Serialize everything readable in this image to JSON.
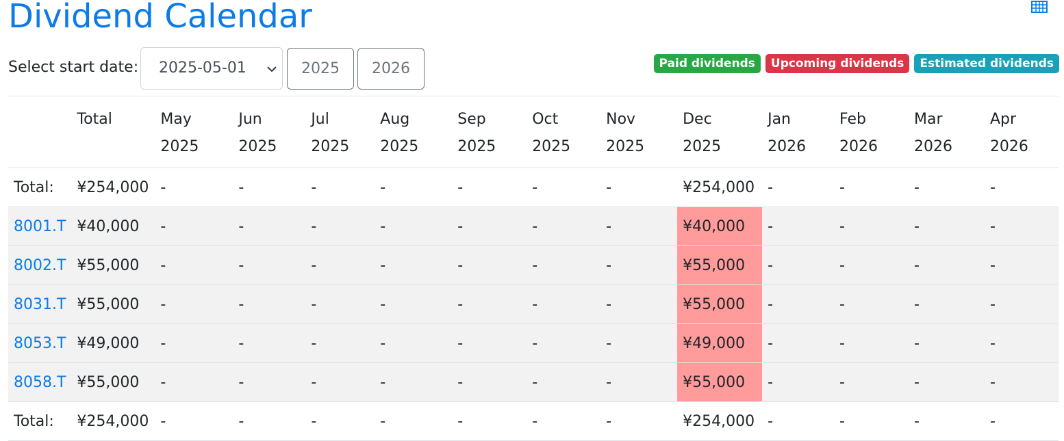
{
  "header": {
    "title": "Dividend Calendar"
  },
  "controls": {
    "label": "Select start date:",
    "date_select": "2025-05-01",
    "buttons": [
      "2025",
      "2026"
    ]
  },
  "legend": [
    {
      "text": "Paid dividends",
      "color": "#28a745"
    },
    {
      "text": "Upcoming dividends",
      "color": "#dc3545"
    },
    {
      "text": "Estimated dividends",
      "color": "#17a2b8"
    }
  ],
  "table": {
    "highlight_color": "#ff9b9b",
    "columns": [
      {
        "top": "Total"
      },
      {
        "top": "May",
        "bottom": "2025"
      },
      {
        "top": "Jun",
        "bottom": "2025"
      },
      {
        "top": "Jul",
        "bottom": "2025"
      },
      {
        "top": "Aug",
        "bottom": "2025"
      },
      {
        "top": "Sep",
        "bottom": "2025"
      },
      {
        "top": "Oct",
        "bottom": "2025"
      },
      {
        "top": "Nov",
        "bottom": "2025"
      },
      {
        "top": "Dec",
        "bottom": "2025"
      },
      {
        "top": "Jan",
        "bottom": "2026"
      },
      {
        "top": "Feb",
        "bottom": "2026"
      },
      {
        "top": "Mar",
        "bottom": "2026"
      },
      {
        "top": "Apr",
        "bottom": "2026"
      }
    ],
    "rows": [
      {
        "label": "Total:",
        "link": false,
        "cells": [
          "¥254,000",
          "-",
          "-",
          "-",
          "-",
          "-",
          "-",
          "-",
          "¥254,000",
          "-",
          "-",
          "-",
          "-"
        ],
        "highlighted_cells": []
      },
      {
        "label": "8001.T",
        "link": true,
        "cells": [
          "¥40,000",
          "-",
          "-",
          "-",
          "-",
          "-",
          "-",
          "-",
          "¥40,000",
          "-",
          "-",
          "-",
          "-"
        ],
        "highlighted_cells": [
          8
        ]
      },
      {
        "label": "8002.T",
        "link": true,
        "cells": [
          "¥55,000",
          "-",
          "-",
          "-",
          "-",
          "-",
          "-",
          "-",
          "¥55,000",
          "-",
          "-",
          "-",
          "-"
        ],
        "highlighted_cells": [
          8
        ]
      },
      {
        "label": "8031.T",
        "link": true,
        "cells": [
          "¥55,000",
          "-",
          "-",
          "-",
          "-",
          "-",
          "-",
          "-",
          "¥55,000",
          "-",
          "-",
          "-",
          "-"
        ],
        "highlighted_cells": [
          8
        ]
      },
      {
        "label": "8053.T",
        "link": true,
        "cells": [
          "¥49,000",
          "-",
          "-",
          "-",
          "-",
          "-",
          "-",
          "-",
          "¥49,000",
          "-",
          "-",
          "-",
          "-"
        ],
        "highlighted_cells": [
          8
        ]
      },
      {
        "label": "8058.T",
        "link": true,
        "cells": [
          "¥55,000",
          "-",
          "-",
          "-",
          "-",
          "-",
          "-",
          "-",
          "¥55,000",
          "-",
          "-",
          "-",
          "-"
        ],
        "highlighted_cells": [
          8
        ]
      },
      {
        "label": "Total:",
        "link": false,
        "cells": [
          "¥254,000",
          "-",
          "-",
          "-",
          "-",
          "-",
          "-",
          "-",
          "¥254,000",
          "-",
          "-",
          "-",
          "-"
        ],
        "highlighted_cells": []
      }
    ]
  }
}
